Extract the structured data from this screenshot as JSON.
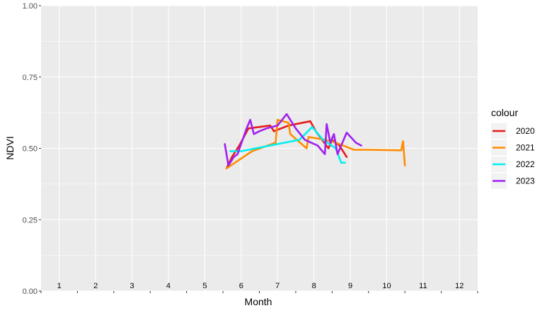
{
  "chart_data": {
    "type": "line",
    "xlabel": "Month",
    "ylabel": "NDVI",
    "xlim": [
      0.5,
      12.5
    ],
    "ylim": [
      0,
      1
    ],
    "x_tick_labels": [
      "1",
      "2",
      "3",
      "4",
      "5",
      "6",
      "7",
      "8",
      "9",
      "10",
      "11",
      "12"
    ],
    "y_ticks": [
      0,
      0.25,
      0.5,
      0.75,
      1
    ],
    "y_tick_labels": [
      "0.00",
      "0.25",
      "0.50",
      "0.75",
      "1.00"
    ],
    "grid": true,
    "legend": {
      "title": "colour",
      "position": "right"
    },
    "series": [
      {
        "name": "2020",
        "color": "#e61a1a",
        "x": [
          5.6,
          5.75,
          5.95,
          6.2,
          6.8,
          6.9,
          7.3,
          7.9,
          8.05,
          8.4,
          8.5,
          8.7,
          8.9
        ],
        "y": [
          0.43,
          0.47,
          0.51,
          0.57,
          0.58,
          0.56,
          0.58,
          0.595,
          0.56,
          0.5,
          0.53,
          0.51,
          0.47
        ]
      },
      {
        "name": "2021",
        "color": "#ff8c00",
        "x": [
          5.6,
          6.3,
          6.95,
          7.0,
          7.3,
          7.35,
          7.8,
          7.85,
          8.3,
          8.6,
          9.1,
          9.5,
          10.4,
          10.45,
          10.5
        ],
        "y": [
          0.43,
          0.49,
          0.52,
          0.6,
          0.59,
          0.55,
          0.5,
          0.54,
          0.53,
          0.52,
          0.495,
          0.495,
          0.493,
          0.525,
          0.44
        ]
      },
      {
        "name": "2022",
        "color": "#00f0f0",
        "x": [
          5.7,
          6.0,
          7.6,
          7.95,
          8.25,
          8.6,
          8.75,
          8.85
        ],
        "y": [
          0.49,
          0.49,
          0.53,
          0.575,
          0.53,
          0.5,
          0.45,
          0.45
        ]
      },
      {
        "name": "2023",
        "color": "#a020f0",
        "x": [
          5.55,
          5.65,
          5.8,
          5.9,
          6.15,
          6.25,
          6.35,
          6.5,
          6.7,
          7.0,
          7.25,
          7.5,
          7.75,
          8.1,
          8.3,
          8.35,
          8.45,
          8.55,
          8.65,
          8.9,
          9.15,
          9.3
        ],
        "y": [
          0.515,
          0.44,
          0.47,
          0.48,
          0.57,
          0.6,
          0.55,
          0.56,
          0.57,
          0.58,
          0.62,
          0.57,
          0.53,
          0.51,
          0.48,
          0.585,
          0.52,
          0.55,
          0.48,
          0.555,
          0.52,
          0.51
        ]
      }
    ]
  }
}
